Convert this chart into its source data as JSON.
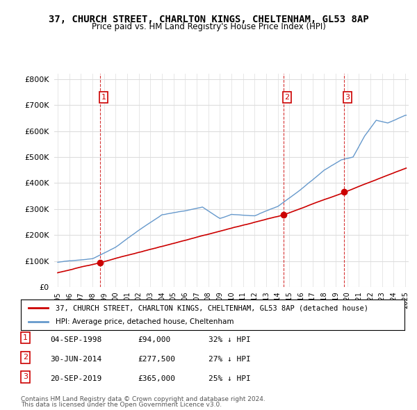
{
  "title": "37, CHURCH STREET, CHARLTON KINGS, CHELTENHAM, GL53 8AP",
  "subtitle": "Price paid vs. HM Land Registry's House Price Index (HPI)",
  "property_label": "37, CHURCH STREET, CHARLTON KINGS, CHELTENHAM, GL53 8AP (detached house)",
  "hpi_label": "HPI: Average price, detached house, Cheltenham",
  "transactions": [
    {
      "num": 1,
      "date": "04-SEP-1998",
      "price": 94000,
      "year": 1998.67,
      "pct": "32% ↓ HPI"
    },
    {
      "num": 2,
      "date": "30-JUN-2014",
      "price": 277500,
      "year": 2014.5,
      "pct": "27% ↓ HPI"
    },
    {
      "num": 3,
      "date": "20-SEP-2019",
      "price": 365000,
      "year": 2019.72,
      "pct": "25% ↓ HPI"
    }
  ],
  "footer_line1": "Contains HM Land Registry data © Crown copyright and database right 2024.",
  "footer_line2": "This data is licensed under the Open Government Licence v3.0.",
  "ylim": [
    0,
    820000
  ],
  "yticks": [
    0,
    100000,
    200000,
    300000,
    400000,
    500000,
    600000,
    700000,
    800000
  ],
  "ytick_labels": [
    "£0",
    "£100K",
    "£200K",
    "£300K",
    "£400K",
    "£500K",
    "£600K",
    "£700K",
    "£800K"
  ],
  "property_line_color": "#cc0000",
  "hpi_line_color": "#6699cc",
  "vline_color": "#cc0000",
  "marker_color": "#cc0000",
  "box_color": "#cc0000",
  "background_color": "#ffffff",
  "grid_color": "#dddddd"
}
